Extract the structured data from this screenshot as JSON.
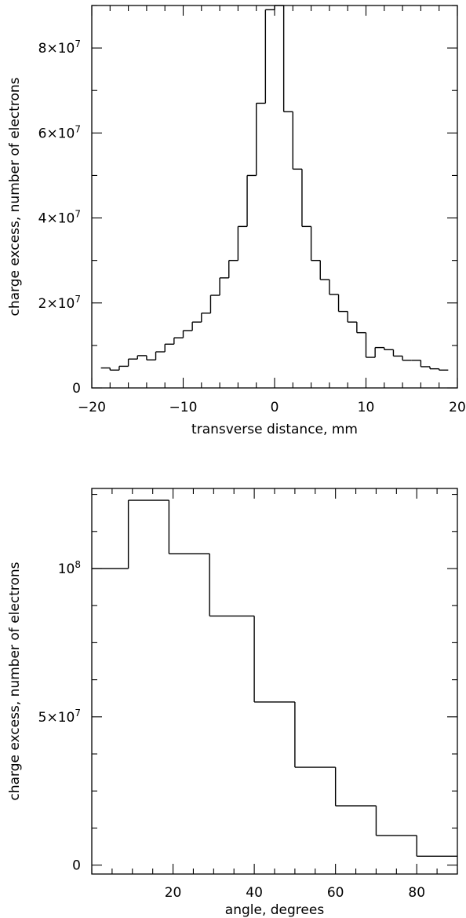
{
  "chart_data": [
    {
      "type": "histogram",
      "xlabel": "transverse distance, mm",
      "ylabel": "charge excess, number of electrons",
      "xlim": [
        -20,
        20
      ],
      "ylim": [
        0,
        90000000
      ],
      "x_ticks": [
        {
          "value": -20,
          "label": "−20"
        },
        {
          "value": -10,
          "label": "−10"
        },
        {
          "value": 0,
          "label": "0"
        },
        {
          "value": 10,
          "label": "10"
        },
        {
          "value": 20,
          "label": "20"
        }
      ],
      "y_ticks": [
        {
          "value": 0,
          "label": "0"
        },
        {
          "value": 20000000,
          "label": "2×10",
          "exp": "7"
        },
        {
          "value": 40000000,
          "label": "4×10",
          "exp": "7"
        },
        {
          "value": 60000000,
          "label": "6×10",
          "exp": "7"
        },
        {
          "value": 80000000,
          "label": "8×10",
          "exp": "7"
        }
      ],
      "bin_edges": [
        -19,
        -18,
        -17,
        -16,
        -15,
        -14,
        -13,
        -12,
        -11,
        -10,
        -9,
        -8,
        -7,
        -6,
        -5,
        -4,
        -3,
        -2,
        -1,
        0,
        1,
        2,
        3,
        4,
        5,
        6,
        7,
        8,
        9,
        10,
        11,
        12,
        13,
        14,
        15,
        16,
        17,
        18,
        19
      ],
      "values": [
        4700000,
        4200000,
        5100000,
        6800000,
        7600000,
        6600000,
        8500000,
        10300000,
        11800000,
        13500000,
        15500000,
        17600000,
        21800000,
        25900000,
        30000000,
        38000000,
        50000000,
        67000000,
        89000000,
        90000000,
        65000000,
        51500000,
        38000000,
        30000000,
        25500000,
        22000000,
        18000000,
        15500000,
        13000000,
        7200000,
        9500000,
        9000000,
        7500000,
        6500000,
        6500000,
        5000000,
        4500000,
        4200000
      ]
    },
    {
      "type": "histogram",
      "xlabel": "angle, degrees",
      "ylabel": "charge excess, number of electrons",
      "xlim": [
        0,
        90
      ],
      "ylim": [
        -3000000,
        127000000
      ],
      "x_ticks": [
        {
          "value": 20,
          "label": "20"
        },
        {
          "value": 40,
          "label": "40"
        },
        {
          "value": 60,
          "label": "60"
        },
        {
          "value": 80,
          "label": "80"
        }
      ],
      "y_ticks": [
        {
          "value": 0,
          "label": "0"
        },
        {
          "value": 50000000,
          "label": "5×10",
          "exp": "7"
        },
        {
          "value": 100000000,
          "label": "10",
          "exp": "8"
        }
      ],
      "bin_edges": [
        0,
        9,
        19,
        29,
        40,
        50,
        60,
        70,
        80,
        90
      ],
      "values": [
        100000000,
        123000000,
        105000000,
        84000000,
        55000000,
        33000000,
        20000000,
        10000000,
        3000000
      ]
    }
  ]
}
